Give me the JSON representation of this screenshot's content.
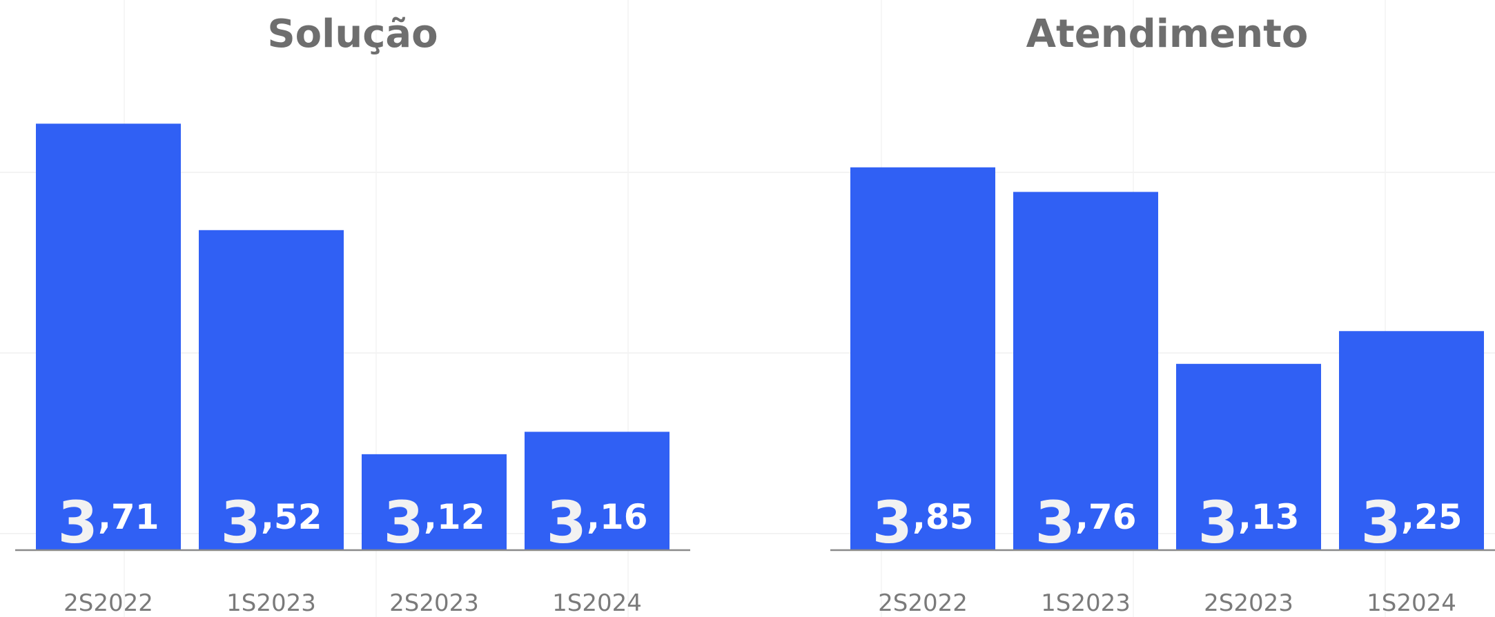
{
  "chart_data": [
    {
      "type": "bar",
      "title": "Solução",
      "categories": [
        "2S2022",
        "1S2023",
        "2S2023",
        "1S2024"
      ],
      "values": [
        3.71,
        3.52,
        3.12,
        3.16
      ],
      "value_labels": [
        {
          "int": "3",
          "dec": ",71"
        },
        {
          "int": "3",
          "dec": ",52"
        },
        {
          "int": "3",
          "dec": ",12"
        },
        {
          "int": "3",
          "dec": ",16"
        }
      ],
      "color": "#3060f4",
      "ylim": [
        2.95,
        3.9
      ],
      "grid": true,
      "legend": "none"
    },
    {
      "type": "bar",
      "title": "Atendimento",
      "categories": [
        "2S2022",
        "1S2023",
        "2S2023",
        "1S2024"
      ],
      "values": [
        3.85,
        3.76,
        3.13,
        3.25
      ],
      "value_labels": [
        {
          "int": "3",
          "dec": ",85"
        },
        {
          "int": "3",
          "dec": ",76"
        },
        {
          "int": "3",
          "dec": ",13"
        },
        {
          "int": "3",
          "dec": ",25"
        }
      ],
      "color": "#3060f4",
      "ylim": [
        2.45,
        4.4
      ],
      "grid": true,
      "legend": "none"
    }
  ]
}
